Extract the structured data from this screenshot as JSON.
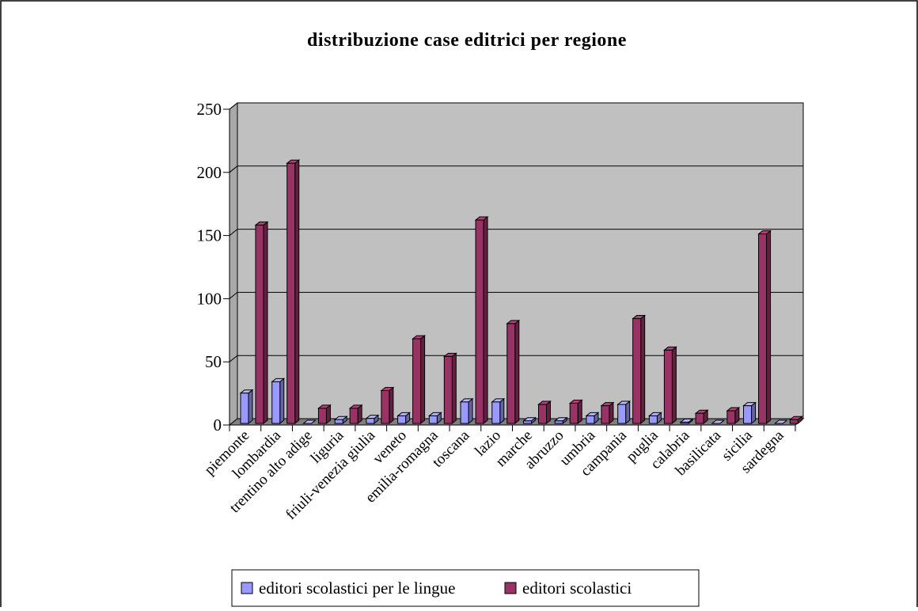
{
  "chart_data": {
    "type": "bar",
    "title": "distribuzione case editrici per regione",
    "xlabel": "",
    "ylabel": "",
    "ylim": [
      0,
      250
    ],
    "yticks": [
      0,
      50,
      100,
      150,
      200,
      250
    ],
    "grid": true,
    "legend": "bottom",
    "categories": [
      "piemonte",
      "lombardia",
      "trentino alto adige",
      "liguria",
      "friuli-venezia giulia",
      "veneto",
      "emilia-romagna",
      "toscana",
      "lazio",
      "marche",
      "abruzzo",
      "umbria",
      "campania",
      "puglia",
      "calabria",
      "basilicata",
      "sicilia",
      "sardegna"
    ],
    "series": [
      {
        "name": "editori scolastici per le lingue",
        "color": "#9999ff",
        "values": [
          24,
          33,
          0,
          3,
          4,
          6,
          6,
          17,
          17,
          2,
          2,
          6,
          15,
          6,
          1,
          0,
          14,
          0
        ]
      },
      {
        "name": "editori scolastici",
        "color": "#993366",
        "values": [
          157,
          206,
          12,
          12,
          26,
          67,
          53,
          161,
          79,
          15,
          16,
          14,
          83,
          58,
          8,
          10,
          150,
          3
        ]
      }
    ]
  }
}
